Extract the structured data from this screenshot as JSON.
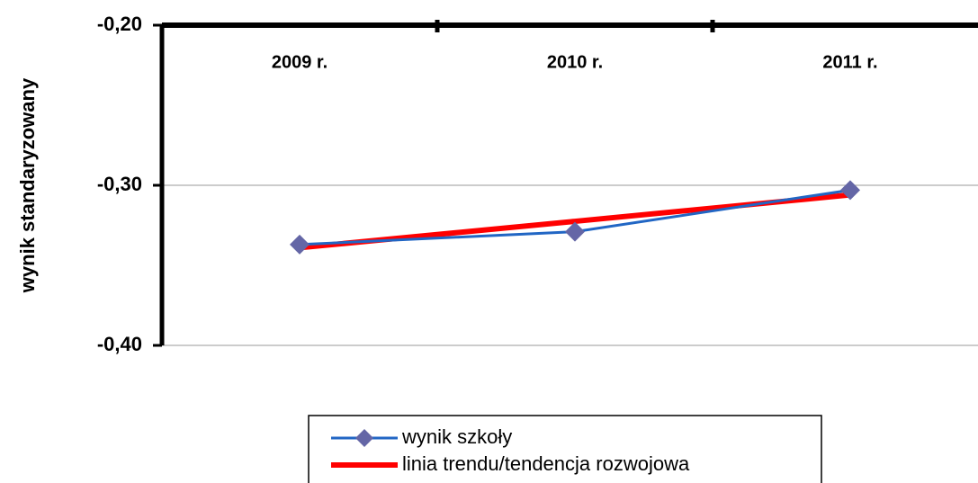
{
  "chart_data": {
    "type": "line",
    "y_label": "wynik standaryzowany",
    "categories": [
      "2009 r.",
      "2010 r.",
      "2011 r."
    ],
    "series": [
      {
        "name": "wynik szkoły",
        "color": "#2166c4",
        "marker_color": "#6466a6",
        "values": [
          -0.337,
          -0.329,
          -0.303
        ]
      },
      {
        "name": "linia trendu/tendencja rozwojowa",
        "color": "#ff0000",
        "values": [
          -0.339,
          -0.3225,
          -0.306
        ]
      }
    ],
    "ylim": [
      -0.4,
      -0.2
    ],
    "yticks": [
      {
        "value": -0.4,
        "label": "-0,40"
      },
      {
        "value": -0.3,
        "label": "-0,30"
      },
      {
        "value": -0.2,
        "label": "-0,20"
      }
    ],
    "grid": true
  }
}
